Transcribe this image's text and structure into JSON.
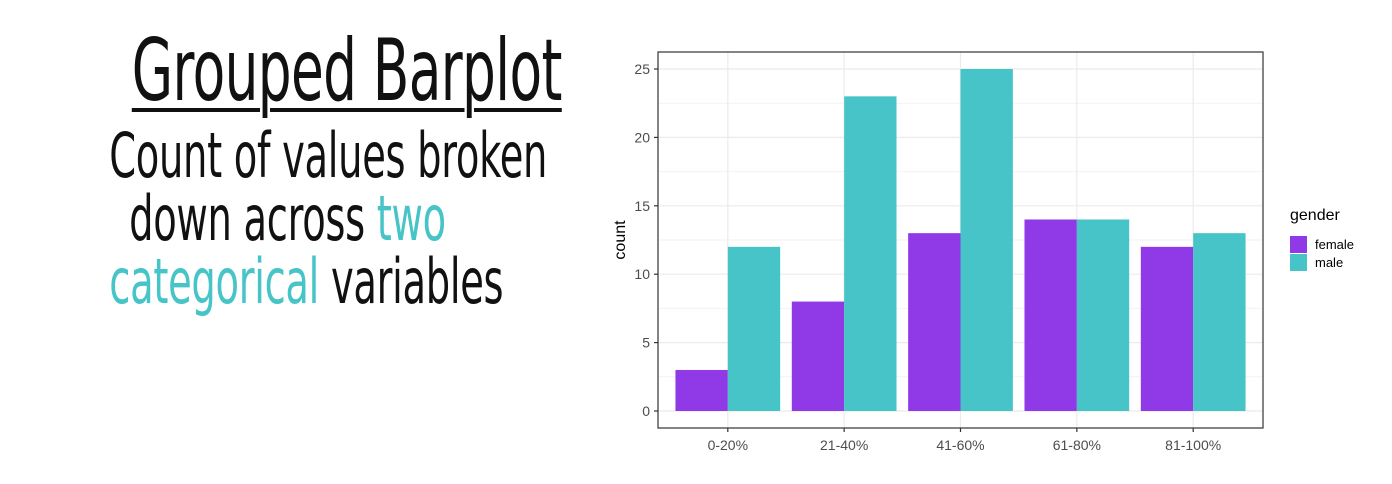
{
  "heading": {
    "title": "Grouped Barplot",
    "line1": "Count of values broken",
    "line2_prefix": "down across ",
    "line2_accent": "two",
    "line3_accent": "categorical",
    "line3_suffix": " variables"
  },
  "colors": {
    "female": "#9039e6",
    "male": "#46c4c8",
    "accent_text": "#46c4c8"
  },
  "chart_data": {
    "type": "bar",
    "categories": [
      "0-20%",
      "21-40%",
      "41-60%",
      "61-80%",
      "81-100%"
    ],
    "series": [
      {
        "name": "female",
        "values": [
          3,
          8,
          13,
          14,
          12
        ]
      },
      {
        "name": "male",
        "values": [
          12,
          23,
          25,
          14,
          13
        ]
      }
    ],
    "xlabel": "",
    "ylabel": "count",
    "ylim": [
      0,
      25
    ],
    "yticks": [
      0,
      5,
      10,
      15,
      20,
      25
    ],
    "legend_title": "gender",
    "legend_position": "right",
    "grid": true
  }
}
